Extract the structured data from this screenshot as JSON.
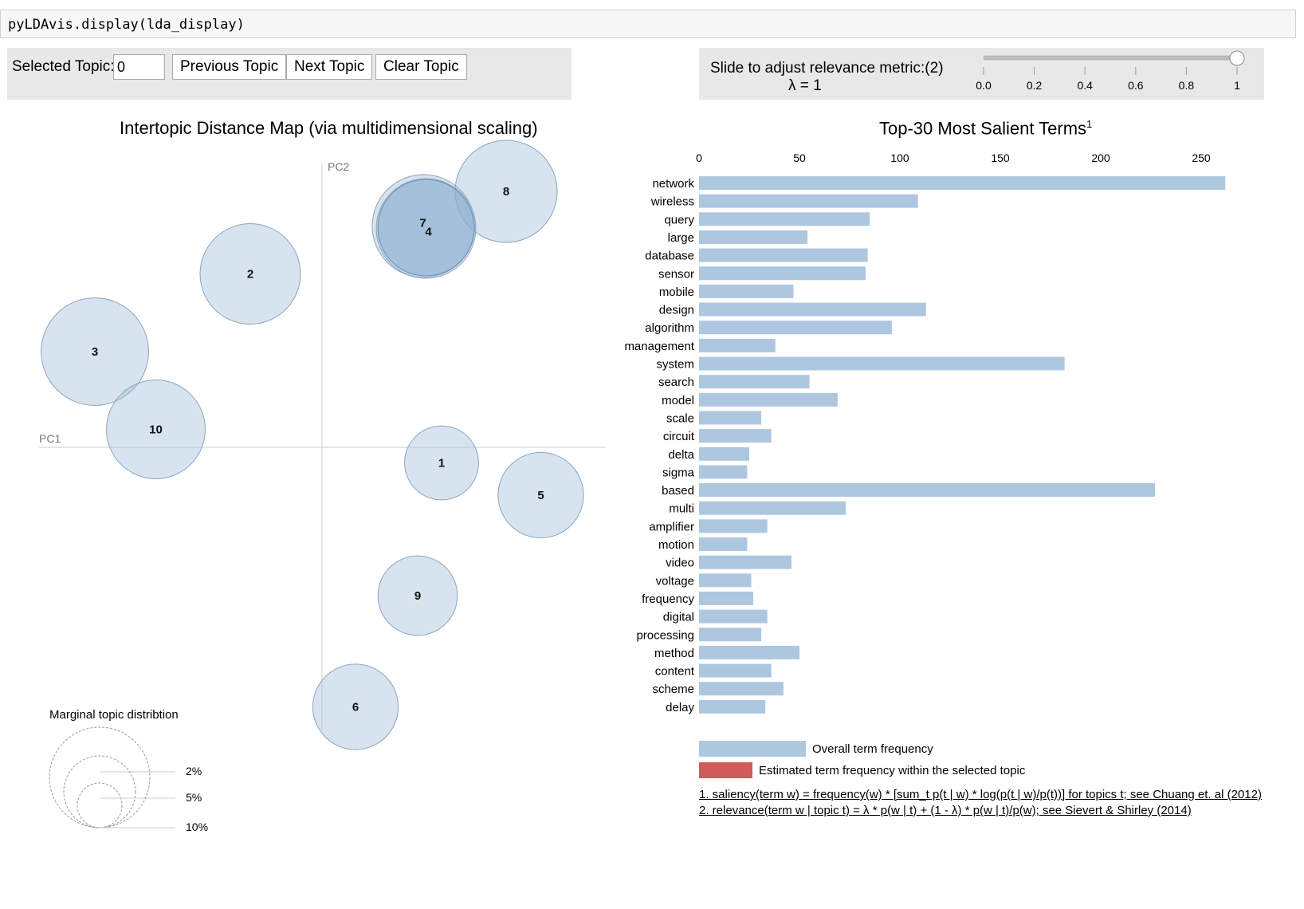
{
  "code_cell": {
    "text": "pyLDAvis.display(lda_display)"
  },
  "controls": {
    "selected_topic_label": "Selected Topic:",
    "selected_topic_value": "0",
    "previous_label": "Previous Topic",
    "next_label": "Next Topic",
    "clear_label": "Clear Topic",
    "slider_label": "Slide to adjust relevance metric:(2)",
    "lambda_label": "λ = 1",
    "lambda_value": 1,
    "slider_ticks": [
      "0.0",
      "0.2",
      "0.4",
      "0.6",
      "0.8",
      "1"
    ]
  },
  "left_title": "Intertopic Distance Map (via multidimensional scaling)",
  "right_title": "Top-30 Most Salient Terms",
  "right_title_sup": "1",
  "axes": {
    "pc1": "PC1",
    "pc2": "PC2"
  },
  "marginal": {
    "title": "Marginal topic distribtion",
    "labels": [
      "2%",
      "5%",
      "10%"
    ]
  },
  "legend": {
    "overall": "Overall term frequency",
    "estimated": "Estimated term frequency within the selected topic"
  },
  "footnotes": {
    "saliency": "1. saliency(term w) = frequency(w) * [sum_t p(t | w) * log(p(t | w)/p(t))] for topics t; see Chuang et. al (2012)",
    "relevance": "2. relevance(term w | topic t) = λ * p(w | t) + (1 - λ) * p(w | t)/p(w); see Sievert & Shirley (2014)"
  },
  "colors": {
    "bar": "#aec7e0",
    "bubble": "#a6c0d9",
    "bubble_selected": "#6f9bc7",
    "estimated": "#d15a5a"
  },
  "chart_data": [
    {
      "type": "scatter",
      "title": "Intertopic Distance Map (via multidimensional scaling)",
      "xlabel": "PC1",
      "ylabel": "PC2",
      "points": [
        {
          "label": "1",
          "x": 0.1,
          "y": -0.013,
          "size_pct": 3.0
        },
        {
          "label": "2",
          "x": -0.06,
          "y": 0.145,
          "size_pct": 5.8
        },
        {
          "label": "3",
          "x": -0.19,
          "y": 0.08,
          "size_pct": 6.7
        },
        {
          "label": "4",
          "x": 0.087,
          "y": 0.183,
          "size_pct": 5.7
        },
        {
          "label": "5",
          "x": 0.183,
          "y": -0.04,
          "size_pct": 4.1
        },
        {
          "label": "6",
          "x": 0.028,
          "y": -0.217,
          "size_pct": 4.1
        },
        {
          "label": "7",
          "x": 0.085,
          "y": 0.185,
          "size_pct": 6.1
        },
        {
          "label": "8",
          "x": 0.154,
          "y": 0.214,
          "size_pct": 6.0
        },
        {
          "label": "9",
          "x": 0.08,
          "y": -0.124,
          "size_pct": 3.5
        },
        {
          "label": "10",
          "x": -0.139,
          "y": 0.015,
          "size_pct": 5.6
        }
      ]
    },
    {
      "type": "bar",
      "orientation": "horizontal",
      "title": "Top-30 Most Salient Terms",
      "xlim": [
        0,
        275
      ],
      "xticks": [
        "0",
        "50",
        "100",
        "150",
        "200",
        "250"
      ],
      "categories": [
        "network",
        "wireless",
        "query",
        "large",
        "database",
        "sensor",
        "mobile",
        "design",
        "algorithm",
        "management",
        "system",
        "search",
        "model",
        "scale",
        "circuit",
        "delta",
        "sigma",
        "based",
        "multi",
        "amplifier",
        "motion",
        "video",
        "voltage",
        "frequency",
        "digital",
        "processing",
        "method",
        "content",
        "scheme",
        "delay"
      ],
      "values": [
        262,
        109,
        85,
        54,
        84,
        83,
        47,
        113,
        96,
        38,
        182,
        55,
        69,
        31,
        36,
        25,
        24,
        227,
        73,
        34,
        24,
        46,
        26,
        27,
        34,
        31,
        50,
        36,
        42,
        33
      ]
    }
  ]
}
